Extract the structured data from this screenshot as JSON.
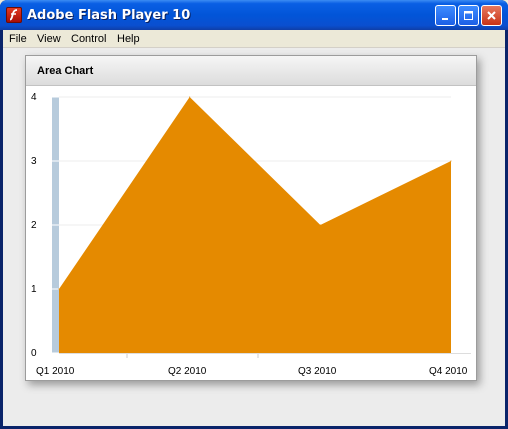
{
  "window": {
    "title": "Adobe Flash Player 10"
  },
  "menu": {
    "items": [
      "File",
      "View",
      "Control",
      "Help"
    ]
  },
  "panel": {
    "title": "Area Chart"
  },
  "chart_data": {
    "type": "area",
    "categories": [
      "Q1 2010",
      "Q2 2010",
      "Q3 2010",
      "Q4 2010"
    ],
    "series": [
      {
        "values": [
          1,
          4,
          2,
          3
        ],
        "color": "#e58a00"
      }
    ],
    "title": "Area Chart",
    "xlabel": "",
    "ylabel": "",
    "ylim": [
      0,
      4
    ],
    "yticks": [
      0,
      1,
      2,
      3,
      4
    ],
    "grid": true,
    "axis_color": "#b7cbdc"
  }
}
